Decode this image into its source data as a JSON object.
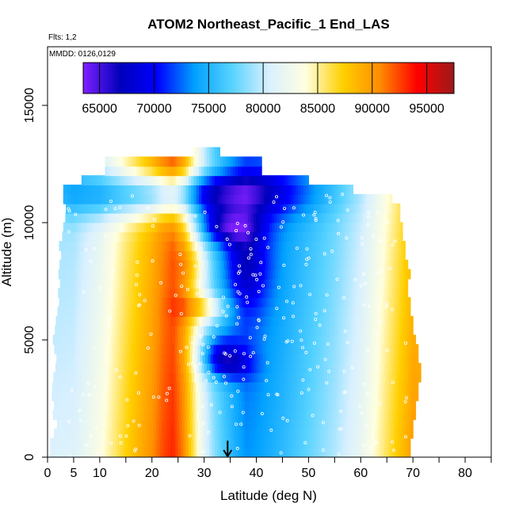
{
  "chart_data": {
    "type": "heatmap",
    "title": "ATOM2 Northeast_Pacific_1 End_LAS",
    "subtitle_flights": "Flts: 1,2",
    "subtitle_dates": "MMDD: 0126,0129",
    "xlabel": "Latitude (deg N)",
    "ylabel": "Altitude (m)",
    "xlim": [
      0,
      85
    ],
    "ylim": [
      0,
      17500
    ],
    "x_ticks": [
      0,
      5,
      10,
      20,
      30,
      40,
      50,
      60,
      70,
      80
    ],
    "x_tick_labels": [
      "0",
      "5",
      "10",
      "20",
      "30",
      "40",
      "50",
      "60",
      "70",
      "80"
    ],
    "x_minor_ticks": [
      15,
      25,
      35,
      45,
      55,
      65,
      75,
      85
    ],
    "y_ticks": [
      0,
      5000,
      10000,
      15000
    ],
    "y_tick_labels": [
      "0",
      "5000",
      "10000",
      "15000"
    ],
    "colorbar": {
      "min": 63500,
      "max": 97500,
      "ticks": [
        65000,
        70000,
        75000,
        80000,
        85000,
        90000,
        95000
      ],
      "tick_labels": [
        "65000",
        "70000",
        "75000",
        "80000",
        "85000",
        "90000",
        "95000"
      ],
      "colors": [
        "#7f1fff",
        "#0000bb",
        "#0000ff",
        "#00a0ff",
        "#56d2ff",
        "#d8f0ff",
        "#ffffe0",
        "#ffd000",
        "#ff8c00",
        "#ff0000",
        "#9b1a1a"
      ]
    },
    "profile": {
      "lat": [
        0,
        5,
        10,
        15,
        20,
        22,
        24,
        26,
        28,
        30,
        32,
        34,
        36,
        38,
        40,
        45,
        50,
        55,
        60,
        65,
        70
      ],
      "value": [
        80800,
        81000,
        83500,
        87200,
        90500,
        92300,
        93300,
        91000,
        86000,
        81500,
        78500,
        76500,
        74800,
        73500,
        73800,
        75500,
        77500,
        79500,
        82000,
        86000,
        90000
      ]
    },
    "layers": [
      {
        "alt": 0,
        "lat_min": 0.5,
        "lat_max": 69.5
      },
      {
        "alt": 400,
        "lat_min": 0.5,
        "lat_max": 69.5
      },
      {
        "alt": 800,
        "lat_min": 1.2,
        "lat_max": 70
      },
      {
        "alt": 1200,
        "lat_min": 1.8,
        "lat_max": 70
      },
      {
        "alt": 1600,
        "lat_min": 1.0,
        "lat_max": 70.5
      },
      {
        "alt": 2000,
        "lat_min": 1.2,
        "lat_max": 70.5
      },
      {
        "alt": 2400,
        "lat_min": 0.8,
        "lat_max": 71
      },
      {
        "alt": 2800,
        "lat_min": 0.9,
        "lat_max": 71
      },
      {
        "alt": 3200,
        "lat_min": 1.1,
        "lat_max": 71.5
      },
      {
        "alt": 3600,
        "lat_min": 1.5,
        "lat_max": 71.5
      },
      {
        "alt": 4000,
        "lat_min": 1.7,
        "lat_max": 71
      },
      {
        "alt": 4400,
        "lat_min": 1.3,
        "lat_max": 71
      },
      {
        "alt": 4800,
        "lat_min": 1.0,
        "lat_max": 70.5
      },
      {
        "alt": 5200,
        "lat_min": 1.4,
        "lat_max": 70
      },
      {
        "alt": 5600,
        "lat_min": 1.6,
        "lat_max": 70
      },
      {
        "alt": 6000,
        "lat_min": 1.9,
        "lat_max": 69.5
      },
      {
        "alt": 6400,
        "lat_min": 2.2,
        "lat_max": 69.5
      },
      {
        "alt": 6800,
        "lat_min": 2.0,
        "lat_max": 69
      },
      {
        "alt": 7200,
        "lat_min": 2.4,
        "lat_max": 69
      },
      {
        "alt": 7600,
        "lat_min": 2.1,
        "lat_max": 69.5
      },
      {
        "alt": 8000,
        "lat_min": 2.3,
        "lat_max": 69
      },
      {
        "alt": 8400,
        "lat_min": 2.6,
        "lat_max": 68.5
      },
      {
        "alt": 8800,
        "lat_min": 2.2,
        "lat_max": 68.5
      },
      {
        "alt": 9200,
        "lat_min": 2.8,
        "lat_max": 68
      },
      {
        "alt": 9600,
        "lat_min": 3.0,
        "lat_max": 68
      },
      {
        "alt": 10000,
        "lat_min": 3.4,
        "lat_max": 67.5
      },
      {
        "alt": 10400,
        "lat_min": 3.5,
        "lat_max": 67.5
      },
      {
        "alt": 10800,
        "lat_min": 3.0,
        "lat_max": 66
      },
      {
        "alt": 11200,
        "lat_min": 3.0,
        "lat_max": 58.5
      },
      {
        "alt": 11600,
        "lat_min": 6.5,
        "lat_max": 50
      },
      {
        "alt": 12000,
        "lat_min": 11,
        "lat_max": 41
      },
      {
        "alt": 12400,
        "lat_min": 11,
        "lat_max": 41
      },
      {
        "alt": 12800,
        "lat_min": 28,
        "lat_max": 33
      }
    ],
    "blobs": [
      {
        "lat": 34,
        "alt": 9800,
        "slat": 4,
        "salt": 500,
        "amp": -8000
      },
      {
        "lat": 38,
        "alt": 8200,
        "slat": 3,
        "salt": 1300,
        "amp": -5000
      },
      {
        "lat": 33,
        "alt": 4400,
        "slat": 3,
        "salt": 600,
        "amp": -7000
      },
      {
        "lat": 35,
        "alt": 3900,
        "slat": 3,
        "salt": 400,
        "amp": -4000
      },
      {
        "lat": 30,
        "alt": 6400,
        "slat": 3,
        "salt": 400,
        "amp": 6000
      },
      {
        "lat": 28,
        "alt": 8200,
        "slat": 2,
        "salt": 700,
        "amp": 2500
      },
      {
        "lat": 24,
        "alt": 11300,
        "slat": 15,
        "salt": 700,
        "amp": -12000
      },
      {
        "lat": 28,
        "alt": 12400,
        "slat": 10,
        "salt": 500,
        "amp": 3000
      },
      {
        "lat": 20,
        "alt": 11600,
        "slat": 10,
        "salt": 500,
        "amp": 2000
      }
    ],
    "annotations": [
      {
        "type": "arrow",
        "lat": 34.5,
        "alt_from": 700,
        "alt_to": 0
      }
    ]
  }
}
